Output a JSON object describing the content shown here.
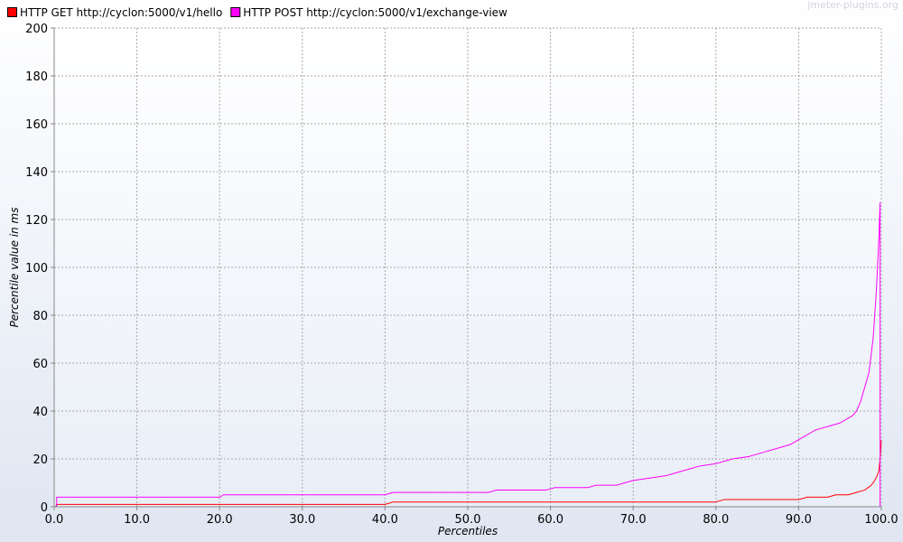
{
  "watermark": "jmeter-plugins.org",
  "chart_data": {
    "type": "line",
    "title": "",
    "xlabel": "Percentiles",
    "ylabel": "Percentile value in ms",
    "xlim": [
      0,
      100
    ],
    "ylim": [
      0,
      200
    ],
    "x_ticks": [
      0,
      10,
      20,
      30,
      40,
      50,
      60,
      70,
      80,
      90,
      100
    ],
    "x_tick_labels": [
      "0.0",
      "10.0",
      "20.0",
      "30.0",
      "40.0",
      "50.0",
      "60.0",
      "70.0",
      "80.0",
      "90.0",
      "100.0"
    ],
    "y_ticks": [
      0,
      20,
      40,
      60,
      80,
      100,
      120,
      140,
      160,
      180,
      200
    ],
    "y_tick_labels": [
      "0",
      "20",
      "40",
      "60",
      "80",
      "100",
      "120",
      "140",
      "160",
      "180",
      "200"
    ],
    "grid": true,
    "legend_position": "top-left",
    "series": [
      {
        "name": "HTTP GET http://cyclon:5000/v1/hello",
        "color": "#ff0000",
        "points": [
          [
            0,
            0
          ],
          [
            0.2,
            0
          ],
          [
            0.3,
            1
          ],
          [
            40,
            1
          ],
          [
            41,
            2
          ],
          [
            80,
            2
          ],
          [
            81,
            3
          ],
          [
            90,
            3
          ],
          [
            91,
            4
          ],
          [
            93.5,
            4
          ],
          [
            94.5,
            5
          ],
          [
            96,
            5
          ],
          [
            97,
            6
          ],
          [
            98,
            7
          ],
          [
            98.8,
            9
          ],
          [
            99.2,
            11
          ],
          [
            99.5,
            13
          ],
          [
            99.7,
            15
          ],
          [
            99.85,
            20
          ],
          [
            100,
            28
          ]
        ]
      },
      {
        "name": "HTTP POST http://cyclon:5000/v1/exchange-view",
        "color": "#ff00ff",
        "points": [
          [
            0,
            0
          ],
          [
            0.3,
            0
          ],
          [
            0.3,
            4
          ],
          [
            20,
            4
          ],
          [
            20.5,
            5
          ],
          [
            40,
            5
          ],
          [
            41,
            6
          ],
          [
            52.5,
            6
          ],
          [
            53.5,
            7
          ],
          [
            59.5,
            7
          ],
          [
            60.5,
            8
          ],
          [
            64.5,
            8
          ],
          [
            65.5,
            9
          ],
          [
            68,
            9
          ],
          [
            69,
            10
          ],
          [
            70,
            11
          ],
          [
            72,
            12
          ],
          [
            74,
            13
          ],
          [
            75,
            14
          ],
          [
            76,
            15
          ],
          [
            77,
            16
          ],
          [
            78,
            17
          ],
          [
            80,
            18
          ],
          [
            81,
            19
          ],
          [
            82,
            20
          ],
          [
            84,
            21
          ],
          [
            85,
            22
          ],
          [
            86,
            23
          ],
          [
            87,
            24
          ],
          [
            88,
            25
          ],
          [
            89,
            26
          ],
          [
            90,
            28
          ],
          [
            91,
            30
          ],
          [
            92,
            32
          ],
          [
            93,
            33
          ],
          [
            94,
            34
          ],
          [
            95,
            35
          ],
          [
            96,
            37
          ],
          [
            96.5,
            38
          ],
          [
            97,
            40
          ],
          [
            97.5,
            44
          ],
          [
            98,
            50
          ],
          [
            98.5,
            56
          ],
          [
            99,
            70
          ],
          [
            99.4,
            90
          ],
          [
            99.7,
            112
          ],
          [
            99.85,
            127
          ],
          [
            99.85,
            0
          ]
        ]
      }
    ]
  }
}
